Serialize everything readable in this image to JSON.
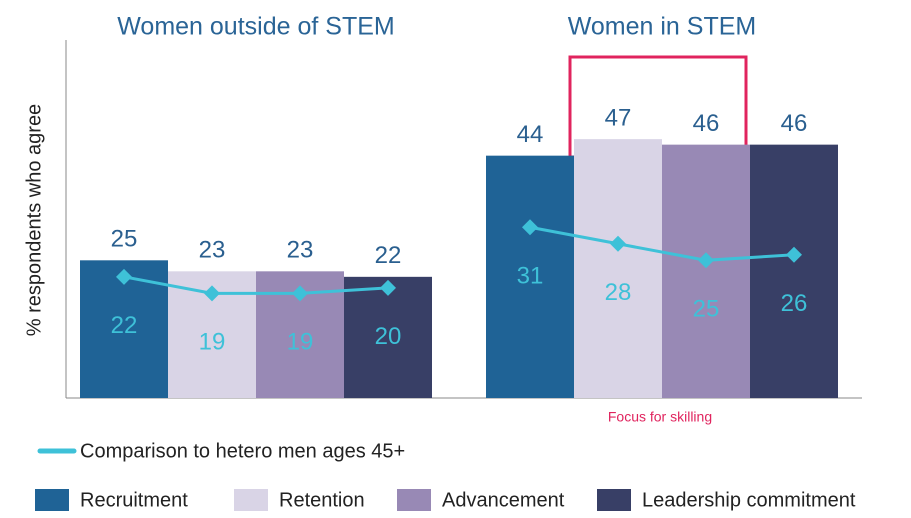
{
  "chart_data": {
    "type": "bar",
    "categories": [
      "Women outside of STEM",
      "Women in STEM"
    ],
    "y_label": "% respondents who agree",
    "ylim": [
      0,
      65
    ],
    "series": [
      {
        "name": "Recruitment",
        "color": "#1f6396",
        "values": [
          25,
          44
        ]
      },
      {
        "name": "Retention",
        "color": "#d9d4e6",
        "values": [
          23,
          47
        ]
      },
      {
        "name": "Advancement",
        "color": "#9889b5",
        "values": [
          23,
          46
        ]
      },
      {
        "name": "Leadership commitment",
        "color": "#383f66",
        "values": [
          22,
          46
        ]
      }
    ],
    "comparison": {
      "name": "Comparison to hetero men ages 45+",
      "color": "#3ec1d8",
      "values": [
        [
          22,
          19,
          19,
          20
        ],
        [
          31,
          28,
          25,
          26
        ]
      ]
    },
    "annotation": "Focus for skilling"
  }
}
